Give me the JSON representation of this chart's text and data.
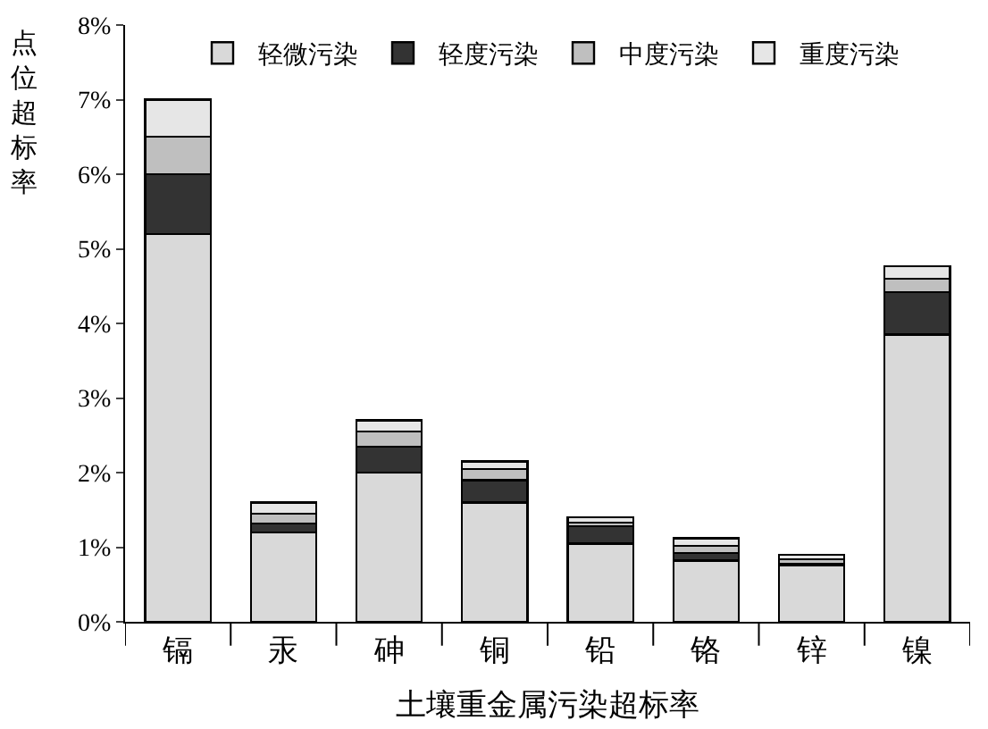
{
  "chart_data": {
    "type": "bar",
    "stacked": true,
    "xlabel": "土壤重金属污染超标率",
    "ylabel": "点位超标率",
    "categories": [
      "镉",
      "汞",
      "砷",
      "铜",
      "铅",
      "铬",
      "锌",
      "镍"
    ],
    "series": [
      {
        "name": "轻微污染",
        "color": "#d9d9d9",
        "values": [
          5.2,
          1.2,
          2.0,
          1.6,
          1.05,
          0.82,
          0.76,
          3.85
        ]
      },
      {
        "name": "轻度污染",
        "color": "#333333",
        "values": [
          0.8,
          0.12,
          0.35,
          0.3,
          0.23,
          0.1,
          0.02,
          0.57
        ]
      },
      {
        "name": "中度污染",
        "color": "#bfbfbf",
        "values": [
          0.5,
          0.13,
          0.2,
          0.15,
          0.05,
          0.1,
          0.06,
          0.18
        ]
      },
      {
        "name": "重度污染",
        "color": "#e6e6e6",
        "values": [
          0.5,
          0.15,
          0.15,
          0.1,
          0.07,
          0.1,
          0.06,
          0.17
        ]
      }
    ],
    "ylim": [
      0,
      8
    ],
    "yticks": [
      {
        "value": 0,
        "label": "0%"
      },
      {
        "value": 1,
        "label": "1%"
      },
      {
        "value": 2,
        "label": "2%"
      },
      {
        "value": 3,
        "label": "3%"
      },
      {
        "value": 4,
        "label": "4%"
      },
      {
        "value": 5,
        "label": "5%"
      },
      {
        "value": 6,
        "label": "6%"
      },
      {
        "value": 7,
        "label": "7%"
      },
      {
        "value": 8,
        "label": "8%"
      }
    ],
    "legend": "top"
  }
}
